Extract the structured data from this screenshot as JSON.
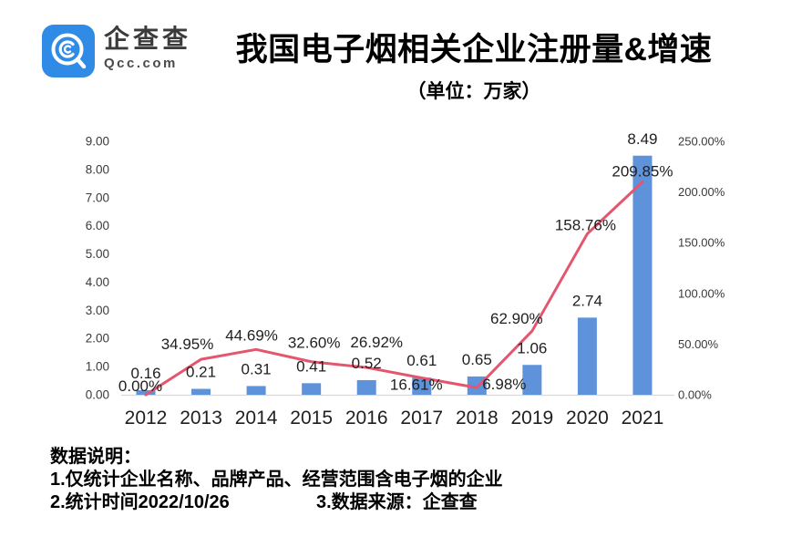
{
  "brand": {
    "name": "企查查",
    "domain": "Qcc.com",
    "logo_color": "#2F8BE6"
  },
  "header": {
    "title": "我国电子烟相关企业注册量&增速",
    "subtitle": "（单位：万家）"
  },
  "chart_data": {
    "type": "bar",
    "title": "我国电子烟相关企业注册量&增速",
    "unit": "万家",
    "categories": [
      "2012",
      "2013",
      "2014",
      "2015",
      "2016",
      "2017",
      "2018",
      "2019",
      "2020",
      "2021"
    ],
    "series": [
      {
        "name": "注册量",
        "type": "bar",
        "color": "#5E92DA",
        "values": [
          0.16,
          0.21,
          0.31,
          0.41,
          0.52,
          0.61,
          0.65,
          1.06,
          2.74,
          8.49
        ],
        "labels": [
          "0.16",
          "0.21",
          "0.31",
          "0.41",
          "0.52",
          "0.61",
          "0.65",
          "1.06",
          "2.74",
          "8.49"
        ]
      },
      {
        "name": "增速",
        "type": "line",
        "color": "#E4566E",
        "values": [
          0.0,
          34.95,
          44.69,
          32.6,
          26.92,
          16.61,
          6.98,
          62.9,
          158.76,
          209.85
        ],
        "labels": [
          "0.00%",
          "34.95%",
          "44.69%",
          "32.60%",
          "26.92%",
          "16.61%",
          "6.98%",
          "62.90%",
          "158.76%",
          "209.85%"
        ]
      }
    ],
    "left_axis": {
      "ticks": [
        "0.00",
        "1.00",
        "2.00",
        "3.00",
        "4.00",
        "5.00",
        "6.00",
        "7.00",
        "8.00",
        "9.00"
      ],
      "min": 0,
      "max": 9
    },
    "right_axis": {
      "ticks": [
        "0.00%",
        "50.00%",
        "100.00%",
        "150.00%",
        "200.00%",
        "250.00%"
      ],
      "min": 0,
      "max": 250
    },
    "grid": false,
    "legend": "none",
    "baseline_color": "#D9D9D9",
    "label_color": "#1f1f1f"
  },
  "notes": {
    "heading": "数据说明：",
    "line1": "1.仅统计企业名称、品牌产品、经营范围含电子烟的企业",
    "line2": "2.统计时间2022/10/26",
    "line3": "3.数据来源：企查查"
  }
}
